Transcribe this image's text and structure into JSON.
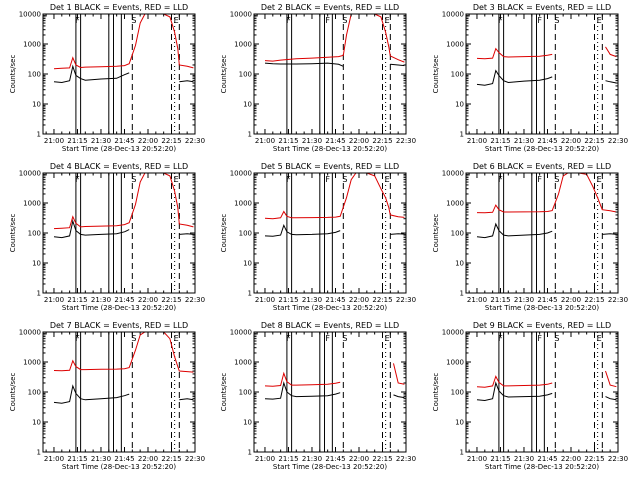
{
  "chart_data": {
    "type": "line",
    "x_ticks": [
      "21:00",
      "21:15",
      "21:30",
      "21:45",
      "22:00",
      "22:15",
      "22:30"
    ],
    "y_ticks": [
      "1",
      "10",
      "100",
      "1000",
      "10000"
    ],
    "ylim": [
      1,
      10000
    ],
    "yscale": "log",
    "xlabel": "Start Time (28-Dec-13 20:52:20)",
    "ylabel": "Counts/sec",
    "colors": {
      "events": "#000000",
      "lld": "#dd0000"
    },
    "panels": [
      {
        "title": "Det  1 BLACK = Events, RED = LLD",
        "x": [
          "21:00",
          "21:05",
          "21:10",
          "21:12",
          "21:14",
          "21:17",
          "21:20",
          "21:30",
          "21:40",
          "21:45",
          "21:48",
          "21:52",
          "21:55",
          "21:58",
          "22:00",
          "22:05",
          "22:10",
          "22:14",
          "22:17",
          "22:19",
          "22:20",
          "22:25",
          "22:29"
        ],
        "events": [
          55,
          52,
          60,
          180,
          90,
          70,
          62,
          68,
          72,
          95,
          110,
          null,
          null,
          null,
          null,
          null,
          null,
          null,
          null,
          null,
          55,
          60,
          55
        ],
        "lld": [
          150,
          155,
          160,
          350,
          200,
          165,
          170,
          175,
          180,
          190,
          220,
          900,
          5000,
          10000,
          10000,
          10000,
          10000,
          8000,
          2500,
          700,
          200,
          180,
          160
        ],
        "solid_marks": [
          "21:14",
          "21:17",
          "21:35",
          "21:38",
          "21:43"
        ],
        "dashed_marks": [
          "21:50",
          "22:15",
          "22:20"
        ],
        "dotted_marks": [
          "22:17"
        ],
        "labels": [
          {
            "text": "F",
            "at": "21:15"
          },
          {
            "text": "S",
            "at": "21:51"
          },
          {
            "text": "E",
            "at": "22:18"
          }
        ]
      },
      {
        "title": "Det  2 BLACK = Events, RED = LLD",
        "x": [
          "21:00",
          "21:05",
          "21:10",
          "21:20",
          "21:30",
          "21:40",
          "21:47",
          "21:50",
          "21:52",
          "21:55",
          "21:58",
          "22:00",
          "22:05",
          "22:10",
          "22:14",
          "22:17",
          "22:19",
          "22:20",
          "22:25",
          "22:29"
        ],
        "events": [
          230,
          220,
          215,
          215,
          220,
          230,
          210,
          180,
          null,
          null,
          null,
          null,
          null,
          null,
          null,
          null,
          null,
          210,
          200,
          190
        ],
        "lld": [
          280,
          270,
          290,
          320,
          340,
          360,
          380,
          420,
          2000,
          10000,
          10000,
          10000,
          10000,
          10000,
          8000,
          2500,
          800,
          400,
          300,
          250
        ],
        "solid_marks": [
          "21:14",
          "21:17",
          "21:35",
          "21:38",
          "21:43"
        ],
        "dashed_marks": [
          "21:50",
          "22:15",
          "22:20"
        ],
        "dotted_marks": [
          "22:17"
        ],
        "labels": [
          {
            "text": "F",
            "at": "21:15"
          },
          {
            "text": "F",
            "at": "21:40"
          },
          {
            "text": "S",
            "at": "21:51"
          },
          {
            "text": "E",
            "at": "22:18"
          }
        ]
      },
      {
        "title": "Det  3 BLACK = Events, RED = LLD",
        "x": [
          "21:00",
          "21:05",
          "21:10",
          "21:12",
          "21:14",
          "21:17",
          "21:20",
          "21:30",
          "21:40",
          "21:45",
          "21:48",
          "21:50",
          "22:20",
          "22:22",
          "22:25",
          "22:29"
        ],
        "events": [
          45,
          42,
          48,
          130,
          90,
          60,
          52,
          58,
          62,
          70,
          80,
          null,
          null,
          60,
          55,
          50
        ],
        "lld": [
          330,
          320,
          340,
          700,
          520,
          380,
          370,
          380,
          390,
          420,
          450,
          null,
          null,
          800,
          450,
          380
        ],
        "solid_marks": [
          "21:14",
          "21:17",
          "21:35",
          "21:38",
          "21:43"
        ],
        "dashed_marks": [
          "21:50",
          "22:15",
          "22:20"
        ],
        "dotted_marks": [
          "22:17"
        ],
        "labels": [
          {
            "text": "F",
            "at": "21:15"
          },
          {
            "text": "F",
            "at": "21:40"
          },
          {
            "text": "S",
            "at": "21:51"
          },
          {
            "text": "E",
            "at": "22:18"
          }
        ]
      },
      {
        "title": "Det  4 BLACK = Events, RED = LLD",
        "x": [
          "21:00",
          "21:05",
          "21:10",
          "21:12",
          "21:14",
          "21:17",
          "21:20",
          "21:30",
          "21:40",
          "21:45",
          "21:48",
          "21:52",
          "21:55",
          "21:58",
          "22:00",
          "22:05",
          "22:10",
          "22:14",
          "22:17",
          "22:19",
          "22:20",
          "22:25",
          "22:29"
        ],
        "events": [
          75,
          70,
          80,
          250,
          120,
          90,
          85,
          90,
          95,
          110,
          130,
          null,
          null,
          null,
          null,
          null,
          null,
          null,
          null,
          null,
          90,
          95,
          90
        ],
        "lld": [
          140,
          145,
          150,
          350,
          210,
          160,
          165,
          170,
          175,
          190,
          220,
          900,
          5000,
          10000,
          10000,
          10000,
          10000,
          8000,
          2500,
          700,
          200,
          180,
          160
        ],
        "solid_marks": [
          "21:14",
          "21:17",
          "21:35",
          "21:38",
          "21:43"
        ],
        "dashed_marks": [
          "21:50",
          "22:15",
          "22:20"
        ],
        "dotted_marks": [
          "22:17"
        ],
        "labels": [
          {
            "text": "F",
            "at": "21:15"
          },
          {
            "text": "S",
            "at": "21:51"
          },
          {
            "text": "E",
            "at": "22:18"
          }
        ]
      },
      {
        "title": "Det  5 BLACK = Events, RED = LLD",
        "x": [
          "21:00",
          "21:05",
          "21:10",
          "21:12",
          "21:14",
          "21:17",
          "21:20",
          "21:30",
          "21:40",
          "21:45",
          "21:48",
          "21:52",
          "21:55",
          "21:58",
          "22:00",
          "22:05",
          "22:10",
          "22:14",
          "22:17",
          "22:19",
          "22:20",
          "22:25",
          "22:29"
        ],
        "events": [
          80,
          78,
          85,
          180,
          110,
          90,
          88,
          90,
          95,
          105,
          120,
          null,
          null,
          null,
          null,
          null,
          null,
          null,
          null,
          null,
          90,
          95,
          92
        ],
        "lld": [
          310,
          300,
          320,
          520,
          360,
          320,
          320,
          325,
          330,
          340,
          360,
          1500,
          6000,
          10000,
          10000,
          10000,
          8000,
          3000,
          1500,
          700,
          400,
          350,
          330
        ],
        "solid_marks": [
          "21:14",
          "21:17",
          "21:35",
          "21:38",
          "21:43"
        ],
        "dashed_marks": [
          "21:50",
          "22:15",
          "22:20"
        ],
        "dotted_marks": [
          "22:17"
        ],
        "labels": [
          {
            "text": "F",
            "at": "21:15"
          },
          {
            "text": "F",
            "at": "21:40"
          },
          {
            "text": "S",
            "at": "21:51"
          },
          {
            "text": "E",
            "at": "22:18"
          }
        ]
      },
      {
        "title": "Det  6 BLACK = Events, RED = LLD",
        "x": [
          "21:00",
          "21:05",
          "21:10",
          "21:12",
          "21:14",
          "21:17",
          "21:20",
          "21:30",
          "21:40",
          "21:45",
          "21:48",
          "21:52",
          "21:55",
          "21:58",
          "22:00",
          "22:05",
          "22:10",
          "22:14",
          "22:17",
          "22:19",
          "22:20",
          "22:25",
          "22:29"
        ],
        "events": [
          75,
          70,
          80,
          200,
          120,
          85,
          80,
          85,
          90,
          100,
          115,
          null,
          null,
          null,
          null,
          null,
          null,
          null,
          null,
          null,
          90,
          95,
          90
        ],
        "lld": [
          480,
          470,
          490,
          850,
          600,
          500,
          500,
          505,
          510,
          520,
          560,
          2000,
          8000,
          10000,
          10000,
          10000,
          9000,
          3500,
          1500,
          800,
          600,
          550,
          500
        ],
        "solid_marks": [
          "21:14",
          "21:17",
          "21:35",
          "21:38",
          "21:43"
        ],
        "dashed_marks": [
          "21:50",
          "22:15",
          "22:20"
        ],
        "dotted_marks": [
          "22:17"
        ],
        "labels": [
          {
            "text": "F",
            "at": "21:15"
          },
          {
            "text": "F",
            "at": "21:40"
          },
          {
            "text": "S",
            "at": "21:51"
          },
          {
            "text": "E",
            "at": "22:18"
          }
        ]
      },
      {
        "title": "Det  7 BLACK = Events, RED = LLD",
        "x": [
          "21:00",
          "21:05",
          "21:10",
          "21:12",
          "21:14",
          "21:17",
          "21:20",
          "21:30",
          "21:40",
          "21:45",
          "21:48",
          "21:52",
          "21:55",
          "21:58",
          "22:00",
          "22:05",
          "22:10",
          "22:14",
          "22:17",
          "22:19",
          "22:20",
          "22:25",
          "22:29"
        ],
        "events": [
          45,
          42,
          48,
          160,
          90,
          60,
          55,
          60,
          65,
          75,
          85,
          null,
          null,
          null,
          null,
          null,
          null,
          null,
          null,
          null,
          55,
          60,
          55
        ],
        "lld": [
          520,
          510,
          530,
          1100,
          700,
          560,
          560,
          570,
          580,
          600,
          650,
          2500,
          8000,
          10000,
          10000,
          10000,
          10000,
          6000,
          1500,
          700,
          500,
          480,
          460
        ],
        "solid_marks": [
          "21:14",
          "21:17",
          "21:35",
          "21:38",
          "21:43"
        ],
        "dashed_marks": [
          "21:50",
          "22:15",
          "22:20"
        ],
        "dotted_marks": [
          "22:17"
        ],
        "labels": [
          {
            "text": "F",
            "at": "21:15"
          },
          {
            "text": "S",
            "at": "21:51"
          },
          {
            "text": "E",
            "at": "22:18"
          }
        ]
      },
      {
        "title": "Det  8 BLACK = Events, RED = LLD",
        "x": [
          "21:00",
          "21:05",
          "21:10",
          "21:12",
          "21:14",
          "21:17",
          "21:20",
          "21:30",
          "21:40",
          "21:45",
          "21:48",
          "21:50",
          "22:20",
          "22:22",
          "22:25",
          "22:29"
        ],
        "events": [
          60,
          58,
          62,
          200,
          100,
          75,
          70,
          72,
          75,
          85,
          95,
          null,
          null,
          80,
          70,
          65
        ],
        "lld": [
          160,
          155,
          165,
          420,
          220,
          170,
          170,
          175,
          180,
          195,
          210,
          null,
          null,
          900,
          200,
          180
        ],
        "solid_marks": [
          "21:14",
          "21:17",
          "21:35",
          "21:38",
          "21:43"
        ],
        "dashed_marks": [
          "21:50",
          "22:15",
          "22:20"
        ],
        "dotted_marks": [
          "22:17"
        ],
        "labels": [
          {
            "text": "F",
            "at": "21:15"
          },
          {
            "text": "F",
            "at": "21:40"
          },
          {
            "text": "S",
            "at": "21:51"
          },
          {
            "text": "E",
            "at": "22:18"
          }
        ]
      },
      {
        "title": "Det  9 BLACK = Events, RED = LLD",
        "x": [
          "21:00",
          "21:05",
          "21:10",
          "21:12",
          "21:14",
          "21:17",
          "21:20",
          "21:30",
          "21:40",
          "21:45",
          "21:48",
          "21:50",
          "22:20",
          "22:22",
          "22:25",
          "22:29"
        ],
        "events": [
          55,
          52,
          60,
          200,
          110,
          75,
          68,
          70,
          72,
          80,
          90,
          null,
          null,
          70,
          60,
          55
        ],
        "lld": [
          150,
          145,
          160,
          330,
          210,
          160,
          160,
          165,
          170,
          180,
          200,
          null,
          null,
          500,
          170,
          150
        ],
        "solid_marks": [
          "21:14",
          "21:17",
          "21:35",
          "21:38",
          "21:43"
        ],
        "dashed_marks": [
          "21:50",
          "22:15",
          "22:20"
        ],
        "dotted_marks": [
          "22:17"
        ],
        "labels": [
          {
            "text": "F",
            "at": "21:15"
          },
          {
            "text": "F",
            "at": "21:40"
          },
          {
            "text": "S",
            "at": "21:51"
          },
          {
            "text": "E",
            "at": "22:18"
          }
        ]
      }
    ]
  }
}
